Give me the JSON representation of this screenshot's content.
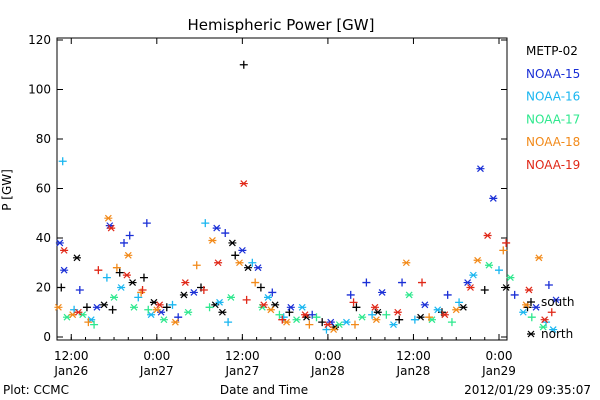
{
  "chart_data": {
    "type": "scatter",
    "title": "Hemispheric Power [GW]",
    "ylabel": "P [GW]",
    "xlabel": "Date and Time",
    "ylim": [
      0,
      120
    ],
    "y_ticks": [
      0,
      20,
      40,
      60,
      80,
      100,
      120
    ],
    "xlim_hours": [
      -2,
      60
    ],
    "x_ticks": [
      {
        "hour": 0,
        "time": "12:00",
        "date": "Jan26"
      },
      {
        "hour": 12,
        "time": "0:00",
        "date": "Jan27"
      },
      {
        "hour": 24,
        "time": "12:00",
        "date": "Jan27"
      },
      {
        "hour": 36,
        "time": "0:00",
        "date": "Jan28"
      },
      {
        "hour": 48,
        "time": "12:00",
        "date": "Jan28"
      },
      {
        "hour": 60,
        "time": "0:00",
        "date": "Jan29"
      }
    ],
    "grid": false,
    "legend_position": "right",
    "series": [
      {
        "name": "METP-02",
        "color": "#000000"
      },
      {
        "name": "NOAA-15",
        "color": "#1a2fd6"
      },
      {
        "name": "NOAA-16",
        "color": "#19b6f0"
      },
      {
        "name": "NOAA-17",
        "color": "#2ee88e"
      },
      {
        "name": "NOAA-18",
        "color": "#f28a1a"
      },
      {
        "name": "NOAA-19",
        "color": "#e02818"
      }
    ],
    "marker_legend": [
      {
        "symbol": "+",
        "label": "south"
      },
      {
        "symbol": "*",
        "label": "north"
      }
    ],
    "points": [
      {
        "s": "METP-02",
        "m": "+",
        "x": -1.4,
        "y": 20
      },
      {
        "s": "METP-02",
        "m": "*",
        "x": 0.8,
        "y": 32
      },
      {
        "s": "METP-02",
        "m": "+",
        "x": 2.2,
        "y": 12
      },
      {
        "s": "METP-02",
        "m": "*",
        "x": 4.6,
        "y": 13
      },
      {
        "s": "METP-02",
        "m": "+",
        "x": 6.8,
        "y": 26
      },
      {
        "s": "METP-02",
        "m": "*",
        "x": 8.6,
        "y": 22
      },
      {
        "s": "METP-02",
        "m": "+",
        "x": 10.2,
        "y": 24
      },
      {
        "s": "METP-02",
        "m": "*",
        "x": 11.6,
        "y": 14
      },
      {
        "s": "METP-02",
        "m": "+",
        "x": 13.4,
        "y": 12
      },
      {
        "s": "METP-02",
        "m": "*",
        "x": 15.8,
        "y": 17
      },
      {
        "s": "METP-02",
        "m": "+",
        "x": 18.2,
        "y": 20
      },
      {
        "s": "METP-02",
        "m": "*",
        "x": 20.2,
        "y": 13
      },
      {
        "s": "METP-02",
        "m": "*",
        "x": 22.6,
        "y": 38
      },
      {
        "s": "METP-02",
        "m": "+",
        "x": 23.0,
        "y": 33
      },
      {
        "s": "METP-02",
        "m": "*",
        "x": 24.8,
        "y": 28
      },
      {
        "s": "METP-02",
        "m": "+",
        "x": 26.6,
        "y": 20
      },
      {
        "s": "METP-02",
        "m": "*",
        "x": 28.6,
        "y": 13
      },
      {
        "s": "METP-02",
        "m": "+",
        "x": 30.6,
        "y": 10
      },
      {
        "s": "METP-02",
        "m": "*",
        "x": 33.0,
        "y": 8
      },
      {
        "s": "METP-02",
        "m": "+",
        "x": 35.2,
        "y": 6
      },
      {
        "s": "METP-02",
        "m": "*",
        "x": 37.0,
        "y": 4
      },
      {
        "s": "METP-02",
        "m": "+",
        "x": 40.0,
        "y": 12
      },
      {
        "s": "METP-02",
        "m": "*",
        "x": 43.0,
        "y": 10
      },
      {
        "s": "METP-02",
        "m": "+",
        "x": 46.0,
        "y": 7
      },
      {
        "s": "METP-02",
        "m": "*",
        "x": 49.0,
        "y": 8
      },
      {
        "s": "METP-02",
        "m": "+",
        "x": 52.0,
        "y": 10
      },
      {
        "s": "METP-02",
        "m": "*",
        "x": 55.0,
        "y": 12
      },
      {
        "s": "METP-02",
        "m": "+",
        "x": 58.0,
        "y": 19
      },
      {
        "s": "METP-02",
        "m": "*",
        "x": 61.0,
        "y": 20
      },
      {
        "s": "METP-02",
        "m": "+",
        "x": 64.0,
        "y": 12
      },
      {
        "s": "METP-02",
        "m": "+",
        "x": 24.2,
        "y": 110
      },
      {
        "s": "METP-02",
        "m": "*",
        "x": 21.2,
        "y": 10
      },
      {
        "s": "METP-02",
        "m": "+",
        "x": 5.8,
        "y": 11
      },
      {
        "s": "NOAA-15",
        "m": "*",
        "x": -1.6,
        "y": 38
      },
      {
        "s": "NOAA-15",
        "m": "*",
        "x": -1.0,
        "y": 27
      },
      {
        "s": "NOAA-15",
        "m": "+",
        "x": 1.2,
        "y": 19
      },
      {
        "s": "NOAA-15",
        "m": "*",
        "x": 3.6,
        "y": 12
      },
      {
        "s": "NOAA-15",
        "m": "*",
        "x": 5.4,
        "y": 45
      },
      {
        "s": "NOAA-15",
        "m": "+",
        "x": 7.4,
        "y": 38
      },
      {
        "s": "NOAA-15",
        "m": "+",
        "x": 8.2,
        "y": 41
      },
      {
        "s": "NOAA-15",
        "m": "+",
        "x": 10.6,
        "y": 46
      },
      {
        "s": "NOAA-15",
        "m": "*",
        "x": 12.6,
        "y": 10
      },
      {
        "s": "NOAA-15",
        "m": "+",
        "x": 15.0,
        "y": 8
      },
      {
        "s": "NOAA-15",
        "m": "*",
        "x": 17.2,
        "y": 18
      },
      {
        "s": "NOAA-15",
        "m": "*",
        "x": 20.4,
        "y": 44
      },
      {
        "s": "NOAA-15",
        "m": "+",
        "x": 21.6,
        "y": 42
      },
      {
        "s": "NOAA-15",
        "m": "*",
        "x": 24.0,
        "y": 35
      },
      {
        "s": "NOAA-15",
        "m": "*",
        "x": 26.2,
        "y": 28
      },
      {
        "s": "NOAA-15",
        "m": "+",
        "x": 28.2,
        "y": 18
      },
      {
        "s": "NOAA-15",
        "m": "*",
        "x": 30.8,
        "y": 12
      },
      {
        "s": "NOAA-15",
        "m": "+",
        "x": 33.8,
        "y": 9
      },
      {
        "s": "NOAA-15",
        "m": "*",
        "x": 36.4,
        "y": 6
      },
      {
        "s": "NOAA-15",
        "m": "+",
        "x": 39.2,
        "y": 17
      },
      {
        "s": "NOAA-15",
        "m": "+",
        "x": 41.4,
        "y": 22
      },
      {
        "s": "NOAA-15",
        "m": "*",
        "x": 43.6,
        "y": 18
      },
      {
        "s": "NOAA-15",
        "m": "+",
        "x": 46.4,
        "y": 22
      },
      {
        "s": "NOAA-15",
        "m": "*",
        "x": 49.6,
        "y": 13
      },
      {
        "s": "NOAA-15",
        "m": "+",
        "x": 52.8,
        "y": 17
      },
      {
        "s": "NOAA-15",
        "m": "*",
        "x": 55.6,
        "y": 22
      },
      {
        "s": "NOAA-15",
        "m": "*",
        "x": 57.4,
        "y": 68
      },
      {
        "s": "NOAA-15",
        "m": "*",
        "x": 59.2,
        "y": 56
      },
      {
        "s": "NOAA-15",
        "m": "+",
        "x": 62.2,
        "y": 17
      },
      {
        "s": "NOAA-15",
        "m": "*",
        "x": 65.2,
        "y": 12
      },
      {
        "s": "NOAA-15",
        "m": "+",
        "x": 67.0,
        "y": 21
      },
      {
        "s": "NOAA-15",
        "m": "*",
        "x": 68.0,
        "y": 15
      },
      {
        "s": "NOAA-16",
        "m": "+",
        "x": -1.2,
        "y": 71
      },
      {
        "s": "NOAA-16",
        "m": "+",
        "x": 0.4,
        "y": 11
      },
      {
        "s": "NOAA-16",
        "m": "*",
        "x": 2.8,
        "y": 7
      },
      {
        "s": "NOAA-16",
        "m": "+",
        "x": 5.0,
        "y": 24
      },
      {
        "s": "NOAA-16",
        "m": "*",
        "x": 7.0,
        "y": 20
      },
      {
        "s": "NOAA-16",
        "m": "+",
        "x": 9.4,
        "y": 16
      },
      {
        "s": "NOAA-16",
        "m": "*",
        "x": 11.2,
        "y": 9
      },
      {
        "s": "NOAA-16",
        "m": "+",
        "x": 14.2,
        "y": 13
      },
      {
        "s": "NOAA-16",
        "m": "+",
        "x": 18.8,
        "y": 46
      },
      {
        "s": "NOAA-16",
        "m": "*",
        "x": 20.8,
        "y": 14
      },
      {
        "s": "NOAA-16",
        "m": "+",
        "x": 22.0,
        "y": 6
      },
      {
        "s": "NOAA-16",
        "m": "+",
        "x": 25.4,
        "y": 30
      },
      {
        "s": "NOAA-16",
        "m": "*",
        "x": 27.6,
        "y": 16
      },
      {
        "s": "NOAA-16",
        "m": "+",
        "x": 29.8,
        "y": 8
      },
      {
        "s": "NOAA-16",
        "m": "*",
        "x": 32.4,
        "y": 12
      },
      {
        "s": "NOAA-16",
        "m": "+",
        "x": 35.8,
        "y": 3
      },
      {
        "s": "NOAA-16",
        "m": "*",
        "x": 38.6,
        "y": 6
      },
      {
        "s": "NOAA-16",
        "m": "+",
        "x": 42.2,
        "y": 9
      },
      {
        "s": "NOAA-16",
        "m": "*",
        "x": 45.2,
        "y": 5
      },
      {
        "s": "NOAA-16",
        "m": "+",
        "x": 48.2,
        "y": 7
      },
      {
        "s": "NOAA-16",
        "m": "*",
        "x": 51.4,
        "y": 11
      },
      {
        "s": "NOAA-16",
        "m": "+",
        "x": 54.4,
        "y": 14
      },
      {
        "s": "NOAA-16",
        "m": "*",
        "x": 56.4,
        "y": 25
      },
      {
        "s": "NOAA-16",
        "m": "+",
        "x": 60.0,
        "y": 27
      },
      {
        "s": "NOAA-16",
        "m": "*",
        "x": 63.4,
        "y": 10
      },
      {
        "s": "NOAA-16",
        "m": "+",
        "x": 66.6,
        "y": 6
      },
      {
        "s": "NOAA-16",
        "m": "*",
        "x": 67.6,
        "y": 3
      },
      {
        "s": "NOAA-17",
        "m": "*",
        "x": -0.6,
        "y": 8
      },
      {
        "s": "NOAA-17",
        "m": "*",
        "x": 1.6,
        "y": 9
      },
      {
        "s": "NOAA-17",
        "m": "+",
        "x": 3.2,
        "y": 5
      },
      {
        "s": "NOAA-17",
        "m": "*",
        "x": 6.0,
        "y": 16
      },
      {
        "s": "NOAA-17",
        "m": "*",
        "x": 8.8,
        "y": 12
      },
      {
        "s": "NOAA-17",
        "m": "+",
        "x": 10.8,
        "y": 11
      },
      {
        "s": "NOAA-17",
        "m": "*",
        "x": 13.0,
        "y": 7
      },
      {
        "s": "NOAA-17",
        "m": "*",
        "x": 16.4,
        "y": 10
      },
      {
        "s": "NOAA-17",
        "m": "+",
        "x": 19.4,
        "y": 12
      },
      {
        "s": "NOAA-17",
        "m": "*",
        "x": 22.4,
        "y": 16
      },
      {
        "s": "NOAA-17",
        "m": "*",
        "x": 26.8,
        "y": 12
      },
      {
        "s": "NOAA-17",
        "m": "+",
        "x": 29.2,
        "y": 9
      },
      {
        "s": "NOAA-17",
        "m": "*",
        "x": 31.6,
        "y": 7
      },
      {
        "s": "NOAA-17",
        "m": "+",
        "x": 34.4,
        "y": 8
      },
      {
        "s": "NOAA-17",
        "m": "*",
        "x": 37.6,
        "y": 5
      },
      {
        "s": "NOAA-17",
        "m": "*",
        "x": 40.8,
        "y": 8
      },
      {
        "s": "NOAA-17",
        "m": "+",
        "x": 44.2,
        "y": 9
      },
      {
        "s": "NOAA-17",
        "m": "*",
        "x": 47.4,
        "y": 17
      },
      {
        "s": "NOAA-17",
        "m": "*",
        "x": 50.6,
        "y": 7
      },
      {
        "s": "NOAA-17",
        "m": "+",
        "x": 53.4,
        "y": 6
      },
      {
        "s": "NOAA-17",
        "m": "*",
        "x": 58.6,
        "y": 29
      },
      {
        "s": "NOAA-17",
        "m": "*",
        "x": 61.6,
        "y": 24
      },
      {
        "s": "NOAA-17",
        "m": "+",
        "x": 64.6,
        "y": 8
      },
      {
        "s": "NOAA-17",
        "m": "*",
        "x": 66.2,
        "y": 4
      },
      {
        "s": "NOAA-18",
        "m": "*",
        "x": -1.8,
        "y": 12
      },
      {
        "s": "NOAA-18",
        "m": "*",
        "x": 0.2,
        "y": 9
      },
      {
        "s": "NOAA-18",
        "m": "+",
        "x": 2.4,
        "y": 6
      },
      {
        "s": "NOAA-18",
        "m": "*",
        "x": 5.2,
        "y": 48
      },
      {
        "s": "NOAA-18",
        "m": "+",
        "x": 6.4,
        "y": 28
      },
      {
        "s": "NOAA-18",
        "m": "*",
        "x": 8.0,
        "y": 33
      },
      {
        "s": "NOAA-18",
        "m": "+",
        "x": 9.8,
        "y": 18
      },
      {
        "s": "NOAA-18",
        "m": "*",
        "x": 12.0,
        "y": 11
      },
      {
        "s": "NOAA-18",
        "m": "*",
        "x": 14.6,
        "y": 6
      },
      {
        "s": "NOAA-18",
        "m": "+",
        "x": 17.6,
        "y": 29
      },
      {
        "s": "NOAA-18",
        "m": "*",
        "x": 19.8,
        "y": 39
      },
      {
        "s": "NOAA-18",
        "m": "*",
        "x": 23.6,
        "y": 30
      },
      {
        "s": "NOAA-18",
        "m": "+",
        "x": 25.8,
        "y": 22
      },
      {
        "s": "NOAA-18",
        "m": "*",
        "x": 28.0,
        "y": 11
      },
      {
        "s": "NOAA-18",
        "m": "*",
        "x": 30.2,
        "y": 6
      },
      {
        "s": "NOAA-18",
        "m": "+",
        "x": 33.4,
        "y": 5
      },
      {
        "s": "NOAA-18",
        "m": "*",
        "x": 36.8,
        "y": 3
      },
      {
        "s": "NOAA-18",
        "m": "+",
        "x": 39.8,
        "y": 5
      },
      {
        "s": "NOAA-18",
        "m": "*",
        "x": 42.8,
        "y": 7
      },
      {
        "s": "NOAA-18",
        "m": "*",
        "x": 47.0,
        "y": 30
      },
      {
        "s": "NOAA-18",
        "m": "+",
        "x": 50.2,
        "y": 8
      },
      {
        "s": "NOAA-18",
        "m": "*",
        "x": 54.0,
        "y": 11
      },
      {
        "s": "NOAA-18",
        "m": "*",
        "x": 57.0,
        "y": 31
      },
      {
        "s": "NOAA-18",
        "m": "+",
        "x": 60.6,
        "y": 35
      },
      {
        "s": "NOAA-18",
        "m": "*",
        "x": 63.8,
        "y": 13
      },
      {
        "s": "NOAA-18",
        "m": "*",
        "x": 65.6,
        "y": 32
      },
      {
        "s": "NOAA-19",
        "m": "*",
        "x": -1.0,
        "y": 35
      },
      {
        "s": "NOAA-19",
        "m": "*",
        "x": 1.0,
        "y": 10
      },
      {
        "s": "NOAA-19",
        "m": "+",
        "x": 3.8,
        "y": 27
      },
      {
        "s": "NOAA-19",
        "m": "*",
        "x": 5.6,
        "y": 44
      },
      {
        "s": "NOAA-19",
        "m": "*",
        "x": 7.8,
        "y": 25
      },
      {
        "s": "NOAA-19",
        "m": "+",
        "x": 10.0,
        "y": 19
      },
      {
        "s": "NOAA-19",
        "m": "*",
        "x": 12.4,
        "y": 13
      },
      {
        "s": "NOAA-19",
        "m": "*",
        "x": 16.0,
        "y": 22
      },
      {
        "s": "NOAA-19",
        "m": "+",
        "x": 18.6,
        "y": 19
      },
      {
        "s": "NOAA-19",
        "m": "*",
        "x": 20.6,
        "y": 30
      },
      {
        "s": "NOAA-19",
        "m": "*",
        "x": 24.2,
        "y": 62
      },
      {
        "s": "NOAA-19",
        "m": "+",
        "x": 24.6,
        "y": 15
      },
      {
        "s": "NOAA-19",
        "m": "*",
        "x": 27.0,
        "y": 13
      },
      {
        "s": "NOAA-19",
        "m": "+",
        "x": 29.6,
        "y": 7
      },
      {
        "s": "NOAA-19",
        "m": "*",
        "x": 32.8,
        "y": 9
      },
      {
        "s": "NOAA-19",
        "m": "*",
        "x": 36.0,
        "y": 5
      },
      {
        "s": "NOAA-19",
        "m": "+",
        "x": 39.6,
        "y": 14
      },
      {
        "s": "NOAA-19",
        "m": "*",
        "x": 42.6,
        "y": 12
      },
      {
        "s": "NOAA-19",
        "m": "*",
        "x": 45.8,
        "y": 10
      },
      {
        "s": "NOAA-19",
        "m": "+",
        "x": 49.2,
        "y": 22
      },
      {
        "s": "NOAA-19",
        "m": "*",
        "x": 52.4,
        "y": 9
      },
      {
        "s": "NOAA-19",
        "m": "*",
        "x": 56.0,
        "y": 20
      },
      {
        "s": "NOAA-19",
        "m": "*",
        "x": 58.4,
        "y": 41
      },
      {
        "s": "NOAA-19",
        "m": "+",
        "x": 61.0,
        "y": 38
      },
      {
        "s": "NOAA-19",
        "m": "*",
        "x": 64.2,
        "y": 19
      },
      {
        "s": "NOAA-19",
        "m": "*",
        "x": 66.4,
        "y": 7
      },
      {
        "s": "NOAA-19",
        "m": "+",
        "x": 67.4,
        "y": 10
      }
    ]
  },
  "footer": {
    "left": "Plot: CCMC",
    "right": "2012/01/29 09:35:07"
  }
}
